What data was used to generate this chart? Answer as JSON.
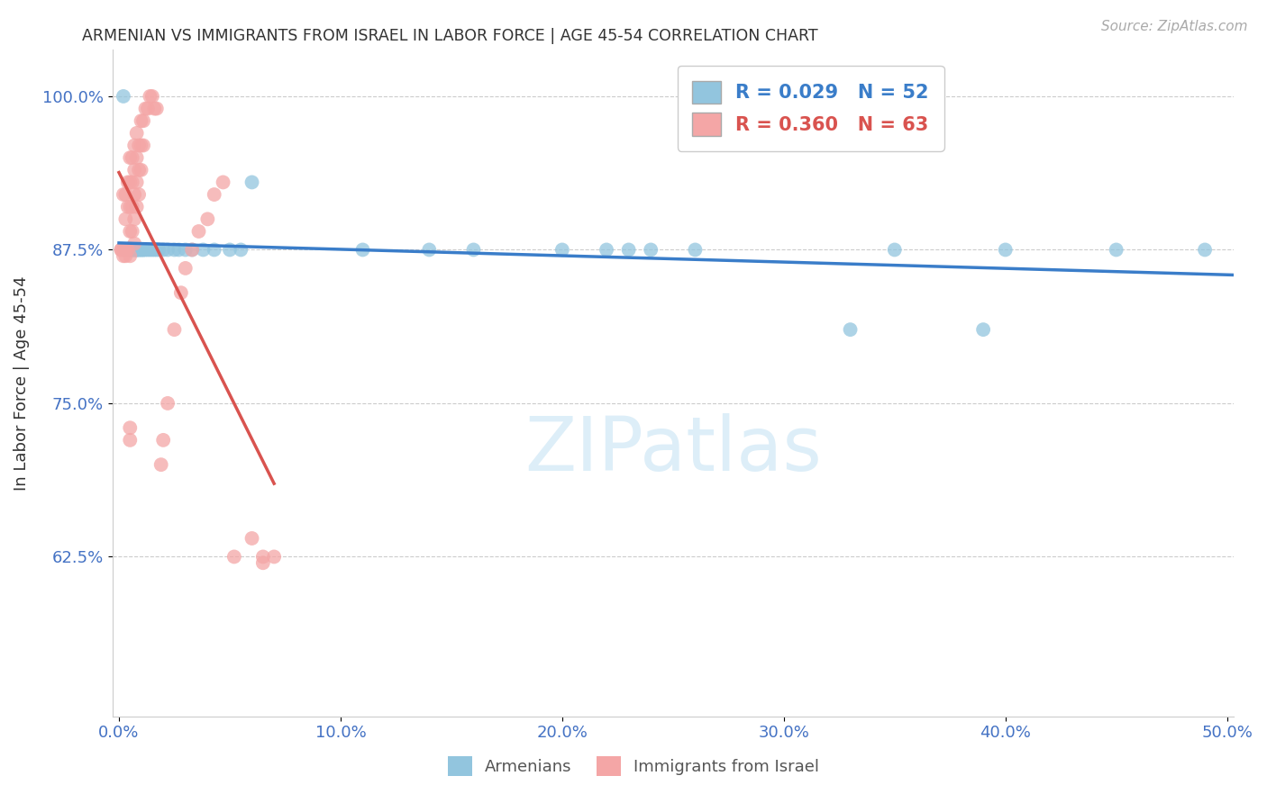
{
  "title": "ARMENIAN VS IMMIGRANTS FROM ISRAEL IN LABOR FORCE | AGE 45-54 CORRELATION CHART",
  "source": "Source: ZipAtlas.com",
  "ylabel": "In Labor Force | Age 45-54",
  "xlim": [
    -0.003,
    0.503
  ],
  "ylim": [
    0.495,
    1.038
  ],
  "xticks": [
    0.0,
    0.1,
    0.2,
    0.3,
    0.4,
    0.5
  ],
  "xticklabels": [
    "0.0%",
    "10.0%",
    "20.0%",
    "30.0%",
    "40.0%",
    "50.0%"
  ],
  "yticks": [
    0.625,
    0.75,
    0.875,
    1.0
  ],
  "yticklabels": [
    "62.5%",
    "75.0%",
    "87.5%",
    "100.0%"
  ],
  "blue_R": 0.029,
  "blue_N": 52,
  "pink_R": 0.36,
  "pink_N": 63,
  "blue_color": "#92c5de",
  "pink_color": "#f4a6a6",
  "blue_line_color": "#3a7dc9",
  "pink_line_color": "#d9534f",
  "axis_tick_color": "#4472c4",
  "grid_color": "#cccccc",
  "watermark_color": "#ddeef8",
  "blue_x": [
    0.002,
    0.003,
    0.004,
    0.004,
    0.005,
    0.005,
    0.005,
    0.006,
    0.006,
    0.007,
    0.007,
    0.008,
    0.008,
    0.008,
    0.009,
    0.009,
    0.01,
    0.01,
    0.011,
    0.011,
    0.012,
    0.013,
    0.014,
    0.015,
    0.016,
    0.017,
    0.018,
    0.02,
    0.022,
    0.025,
    0.027,
    0.03,
    0.033,
    0.038,
    0.043,
    0.05,
    0.055,
    0.06,
    0.11,
    0.14,
    0.16,
    0.2,
    0.22,
    0.23,
    0.24,
    0.26,
    0.33,
    0.35,
    0.39,
    0.4,
    0.45,
    0.49
  ],
  "blue_y": [
    1.0,
    0.875,
    0.875,
    0.875,
    0.875,
    0.875,
    0.875,
    0.875,
    0.875,
    0.875,
    0.875,
    0.875,
    0.875,
    0.875,
    0.875,
    0.875,
    0.875,
    0.875,
    0.875,
    0.875,
    0.875,
    0.875,
    0.875,
    0.875,
    0.875,
    0.875,
    0.875,
    0.875,
    0.875,
    0.875,
    0.875,
    0.875,
    0.875,
    0.875,
    0.875,
    0.875,
    0.875,
    0.93,
    0.875,
    0.875,
    0.875,
    0.875,
    0.875,
    0.875,
    0.875,
    0.875,
    0.81,
    0.875,
    0.81,
    0.875,
    0.875,
    0.875
  ],
  "pink_x": [
    0.001,
    0.001,
    0.002,
    0.002,
    0.002,
    0.002,
    0.003,
    0.003,
    0.003,
    0.003,
    0.004,
    0.004,
    0.004,
    0.005,
    0.005,
    0.005,
    0.005,
    0.005,
    0.006,
    0.006,
    0.006,
    0.006,
    0.007,
    0.007,
    0.007,
    0.007,
    0.007,
    0.008,
    0.008,
    0.008,
    0.008,
    0.009,
    0.009,
    0.009,
    0.01,
    0.01,
    0.01,
    0.011,
    0.011,
    0.012,
    0.013,
    0.014,
    0.015,
    0.016,
    0.017,
    0.019,
    0.02,
    0.022,
    0.025,
    0.028,
    0.03,
    0.033,
    0.036,
    0.04,
    0.043,
    0.047,
    0.052,
    0.06,
    0.065,
    0.065,
    0.07,
    0.005,
    0.005
  ],
  "pink_y": [
    0.875,
    0.875,
    0.92,
    0.875,
    0.875,
    0.87,
    0.92,
    0.9,
    0.875,
    0.87,
    0.93,
    0.91,
    0.875,
    0.95,
    0.93,
    0.91,
    0.89,
    0.87,
    0.95,
    0.93,
    0.91,
    0.89,
    0.96,
    0.94,
    0.92,
    0.9,
    0.88,
    0.97,
    0.95,
    0.93,
    0.91,
    0.96,
    0.94,
    0.92,
    0.98,
    0.96,
    0.94,
    0.98,
    0.96,
    0.99,
    0.99,
    1.0,
    1.0,
    0.99,
    0.99,
    0.7,
    0.72,
    0.75,
    0.81,
    0.84,
    0.86,
    0.875,
    0.89,
    0.9,
    0.92,
    0.93,
    0.625,
    0.64,
    0.625,
    0.62,
    0.625,
    0.73,
    0.72
  ]
}
